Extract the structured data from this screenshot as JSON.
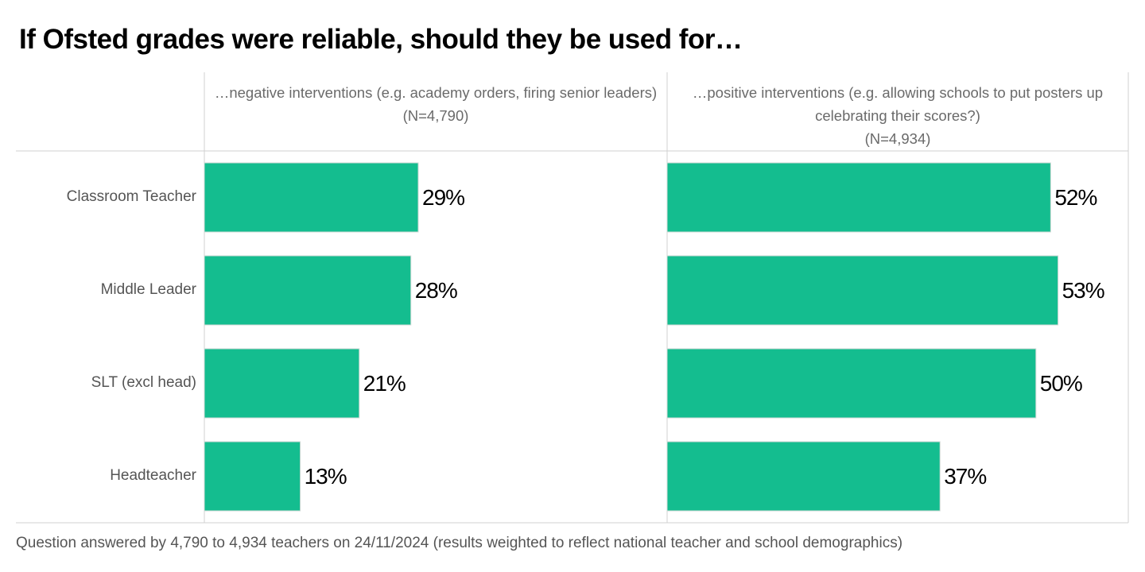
{
  "title": "If Ofsted grades were reliable, should they be used for…",
  "footnote": "Question answered by 4,790 to 4,934 teachers on 24/11/2024 (results weighted to reflect national teacher and school demographics)",
  "colors": {
    "bar": "#14bd8f",
    "grid": "#d0d0d0",
    "label": "#555555",
    "header": "#6a6a6a"
  },
  "chart_data": {
    "type": "bar",
    "orientation": "horizontal",
    "categories": [
      "Classroom Teacher",
      "Middle Leader",
      "SLT (excl head)",
      "Headteacher"
    ],
    "panels": [
      {
        "header": "…negative interventions (e.g. academy orders, firing senior leaders)",
        "n_label": "(N=4,790)",
        "values": [
          29,
          28,
          21,
          13
        ],
        "value_labels": [
          "29%",
          "28%",
          "21%",
          "13%"
        ]
      },
      {
        "header": "…positive interventions (e.g. allowing schools to put posters up celebrating their scores?)",
        "n_label": "(N=4,934)",
        "values": [
          52,
          53,
          50,
          37
        ],
        "value_labels": [
          "52%",
          "53%",
          "50%",
          "37%"
        ]
      }
    ],
    "xlim": [
      0,
      62
    ],
    "unit": "%"
  }
}
